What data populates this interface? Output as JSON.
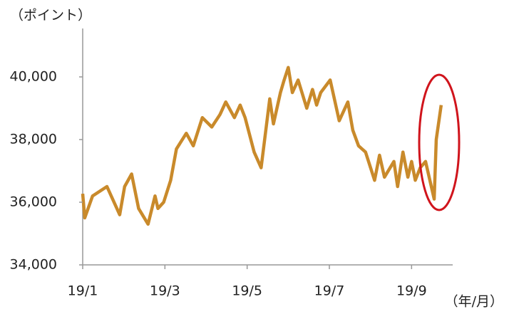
{
  "chart_data": {
    "type": "line",
    "y_label": "（ポイント）",
    "x_label": "（年/月）",
    "x": [
      1.0,
      1.05,
      1.24,
      1.59,
      1.9,
      2.02,
      2.19,
      2.36,
      2.59,
      2.76,
      2.83,
      2.97,
      3.14,
      3.28,
      3.52,
      3.69,
      3.91,
      4.14,
      4.34,
      4.48,
      4.69,
      4.83,
      4.95,
      5.17,
      5.34,
      5.55,
      5.64,
      5.81,
      5.9,
      6.0,
      6.1,
      6.24,
      6.45,
      6.59,
      6.69,
      6.79,
      7.02,
      7.24,
      7.45,
      7.57,
      7.71,
      7.88,
      8.1,
      8.22,
      8.34,
      8.57,
      8.66,
      8.79,
      8.91,
      9.0,
      9.09,
      9.21,
      9.34,
      9.48,
      9.55,
      9.6,
      9.72
    ],
    "series": [
      {
        "color": "#c98a2b",
        "values": [
          36270,
          35500,
          36200,
          36500,
          35600,
          36500,
          36900,
          35800,
          35300,
          36200,
          35800,
          36000,
          36700,
          37700,
          38200,
          37800,
          38700,
          38400,
          38800,
          39200,
          38700,
          39100,
          38700,
          37600,
          37100,
          39300,
          38500,
          39500,
          39900,
          40300,
          39500,
          39900,
          39000,
          39600,
          39100,
          39500,
          39900,
          38600,
          39200,
          38300,
          37800,
          37600,
          36700,
          37500,
          36800,
          37300,
          36500,
          37600,
          36800,
          37300,
          36700,
          37100,
          37300,
          36500,
          36100,
          38000,
          39100
        ]
      }
    ],
    "xlim": [
      1,
      10.0
    ],
    "xticks": [
      {
        "value": 1,
        "label": "19/1"
      },
      {
        "value": 3,
        "label": "19/3"
      },
      {
        "value": 5,
        "label": "19/5"
      },
      {
        "value": 7,
        "label": "19/7"
      },
      {
        "value": 9,
        "label": "19/9"
      }
    ],
    "ylim": [
      34000,
      41500
    ],
    "yticks": [
      {
        "value": 34000,
        "label": "34,000"
      },
      {
        "value": 36000,
        "label": "36,000"
      },
      {
        "value": 38000,
        "label": "38,000"
      },
      {
        "value": 40000,
        "label": "40,000"
      }
    ],
    "grid": false
  }
}
